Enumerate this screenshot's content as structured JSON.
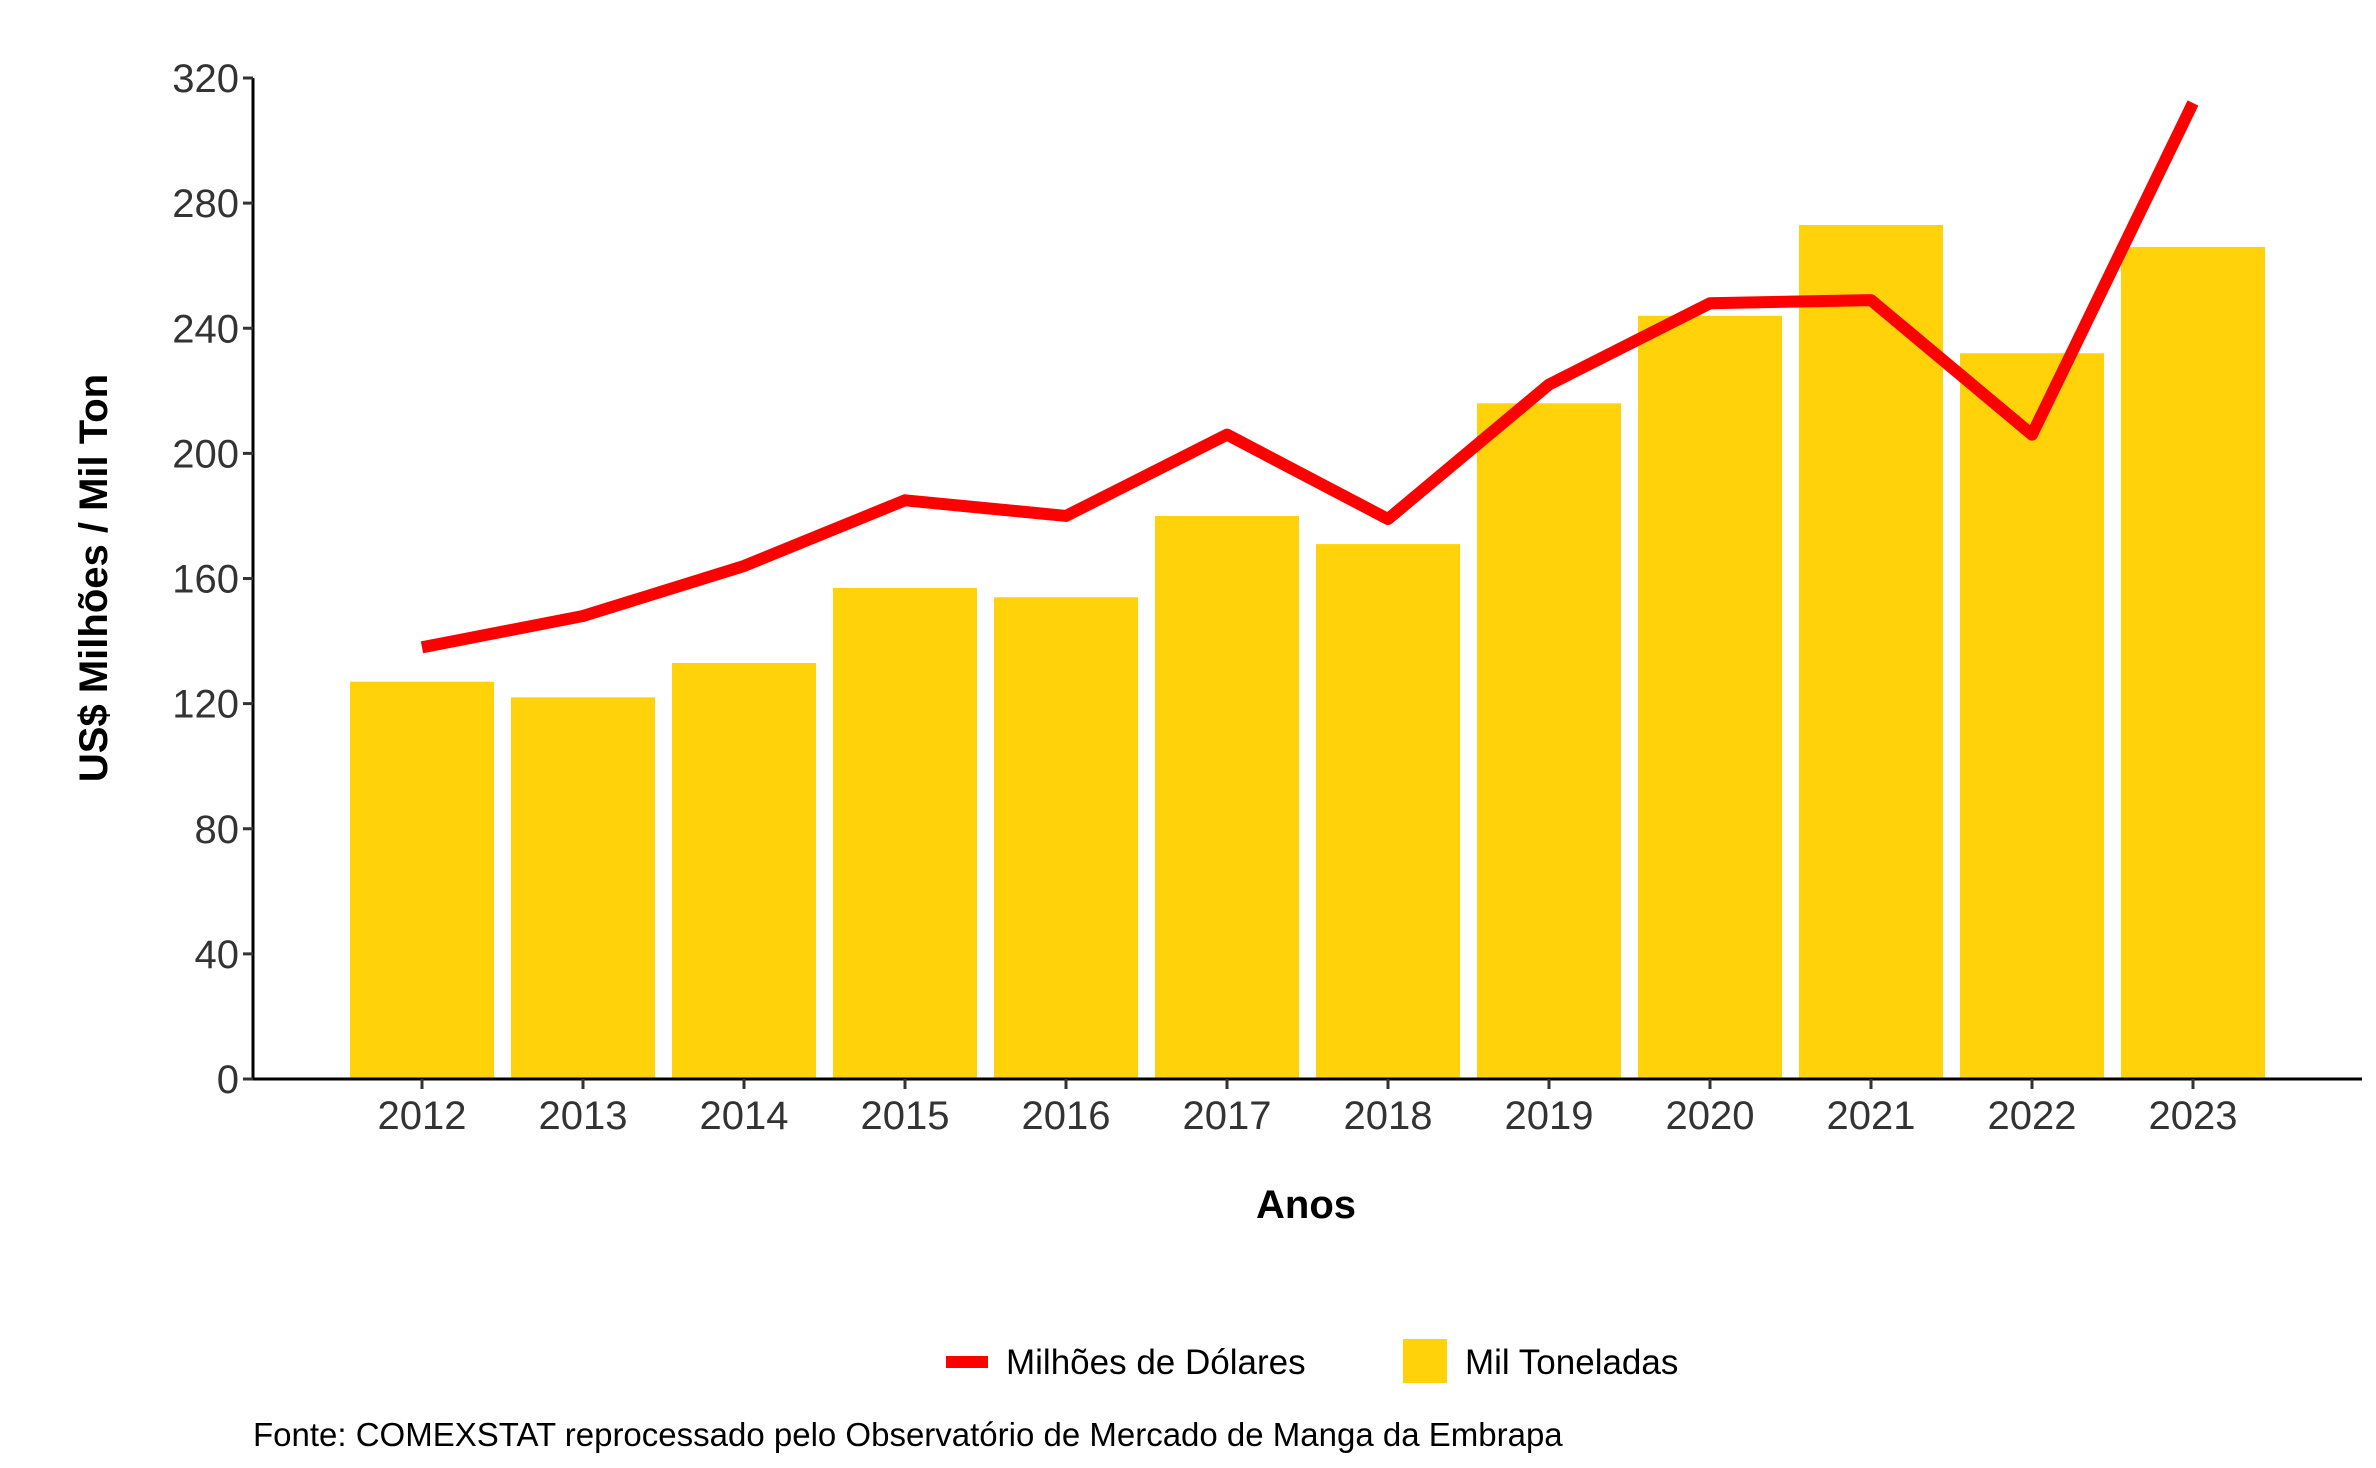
{
  "chart_data": {
    "type": "bar",
    "categories": [
      "2012",
      "2013",
      "2014",
      "2015",
      "2016",
      "2017",
      "2018",
      "2019",
      "2020",
      "2021",
      "2022",
      "2023"
    ],
    "series": [
      {
        "name": "Mil Toneladas",
        "type": "bar",
        "color": "#FFD20A",
        "values": [
          127,
          122,
          133,
          157,
          154,
          180,
          171,
          216,
          244,
          273,
          232,
          266
        ]
      },
      {
        "name": "Milhões de Dólares",
        "type": "line",
        "color": "#FF0000",
        "values": [
          138,
          148,
          164,
          185,
          180,
          206,
          179,
          222,
          248,
          249,
          206,
          312
        ]
      }
    ],
    "y_ticks": [
      "0",
      "40",
      "80",
      "120",
      "160",
      "200",
      "240",
      "280",
      "320"
    ],
    "xlabel": "Anos",
    "ylabel": "US$ Milhões / Mil Ton",
    "ylim": [
      0,
      320
    ],
    "grid": false,
    "legend_position": "bottom",
    "caption": "Fonte: COMEXSTAT reprocessado pelo Observatório de Mercado de Manga da Embrapa"
  }
}
